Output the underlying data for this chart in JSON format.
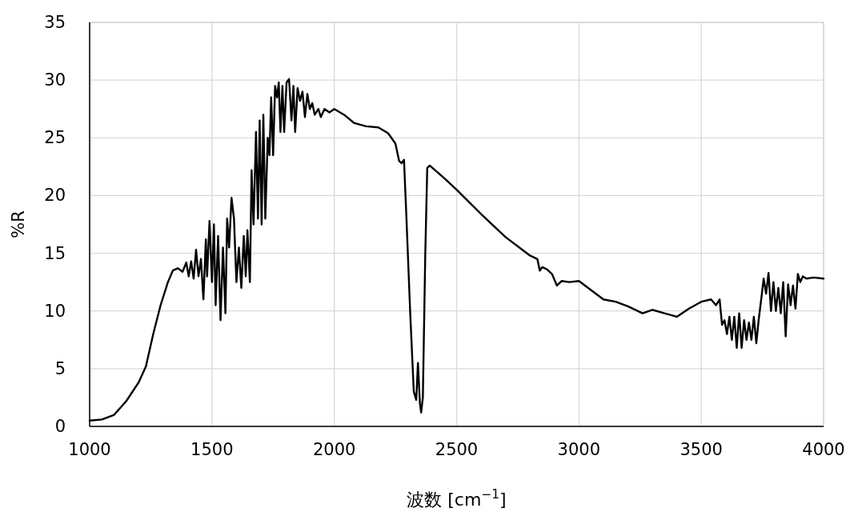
{
  "chart_data": {
    "type": "line",
    "xlabel": "波数 [cm$^{−1}$]",
    "ylabel": "%R",
    "xlim": [
      1000,
      4000
    ],
    "ylim": [
      0,
      35
    ],
    "xticks": [
      1000,
      1500,
      2000,
      2500,
      3000,
      3500,
      4000
    ],
    "yticks": [
      0,
      5,
      10,
      15,
      20,
      25,
      30,
      35
    ],
    "grid": true,
    "x": [
      1000,
      1050,
      1100,
      1150,
      1200,
      1230,
      1260,
      1290,
      1320,
      1340,
      1360,
      1380,
      1395,
      1405,
      1415,
      1425,
      1435,
      1445,
      1455,
      1465,
      1475,
      1480,
      1490,
      1500,
      1508,
      1515,
      1525,
      1535,
      1545,
      1555,
      1562,
      1570,
      1580,
      1590,
      1600,
      1610,
      1620,
      1630,
      1638,
      1645,
      1655,
      1662,
      1670,
      1680,
      1688,
      1695,
      1703,
      1710,
      1718,
      1728,
      1735,
      1742,
      1750,
      1758,
      1766,
      1773,
      1780,
      1788,
      1795,
      1805,
      1815,
      1825,
      1833,
      1840,
      1850,
      1860,
      1870,
      1880,
      1890,
      1900,
      1910,
      1920,
      1935,
      1945,
      1960,
      1980,
      2000,
      2040,
      2080,
      2130,
      2180,
      2220,
      2250,
      2265,
      2275,
      2285,
      2295,
      2310,
      2325,
      2335,
      2342,
      2350,
      2355,
      2362,
      2372,
      2380,
      2390,
      2450,
      2500,
      2600,
      2700,
      2800,
      2830,
      2840,
      2850,
      2870,
      2890,
      2910,
      2930,
      2960,
      3000,
      3050,
      3100,
      3150,
      3200,
      3260,
      3300,
      3350,
      3400,
      3450,
      3500,
      3540,
      3560,
      3575,
      3585,
      3595,
      3605,
      3615,
      3625,
      3635,
      3645,
      3655,
      3665,
      3675,
      3685,
      3695,
      3705,
      3715,
      3725,
      3735,
      3745,
      3755,
      3765,
      3775,
      3785,
      3795,
      3805,
      3815,
      3825,
      3835,
      3845,
      3855,
      3865,
      3875,
      3885,
      3895,
      3905,
      3915,
      3930,
      3960,
      4000
    ],
    "series": [
      {
        "color": "#000000",
        "values": [
          0.5,
          0.6,
          1.0,
          2.2,
          3.8,
          5.2,
          8,
          10.5,
          12.5,
          13.5,
          13.7,
          13.4,
          14.2,
          13.0,
          14.3,
          12.8,
          15.3,
          13.0,
          14.5,
          11.0,
          16.2,
          13.0,
          17.8,
          12.5,
          17.5,
          10.5,
          16.5,
          9.2,
          15.5,
          9.8,
          18.0,
          15.5,
          19.8,
          18.0,
          12.5,
          15.5,
          12.0,
          16.5,
          13.0,
          17.0,
          12.5,
          22.2,
          17.5,
          25.5,
          18.0,
          26.5,
          17.5,
          27.0,
          18.0,
          25.0,
          23.5,
          28.5,
          23.5,
          29.5,
          28.5,
          29.8,
          25.5,
          29.5,
          25.5,
          29.8,
          30.1,
          26.5,
          29.5,
          25.5,
          29.3,
          28.2,
          29.0,
          26.8,
          28.8,
          27.5,
          28.0,
          27.0,
          27.5,
          26.8,
          27.5,
          27.2,
          27.5,
          27.0,
          26.3,
          26.0,
          25.9,
          25.4,
          24.5,
          23.0,
          22.8,
          23.1,
          18,
          10,
          3,
          2.3,
          5.5,
          2.0,
          1.2,
          2.5,
          15,
          22.4,
          22.6,
          21.5,
          20.5,
          18.4,
          16.4,
          14.8,
          14.5,
          13.5,
          13.8,
          13.6,
          13.2,
          12.2,
          12.6,
          12.5,
          12.6,
          11.8,
          11.0,
          10.8,
          10.4,
          9.8,
          10.1,
          9.8,
          9.5,
          10.2,
          10.8,
          11.0,
          10.5,
          11.0,
          8.8,
          9.2,
          8.0,
          9.5,
          7.5,
          9.5,
          6.8,
          9.8,
          6.8,
          9.2,
          7.5,
          9.0,
          7.5,
          9.5,
          7.2,
          9.3,
          11.0,
          12.8,
          11.5,
          13.3,
          10.0,
          12.5,
          10.0,
          12.0,
          9.8,
          12.5,
          7.8,
          12.3,
          10.5,
          12.2,
          10.2,
          13.2,
          12.5,
          13.0,
          12.8,
          12.9,
          12.8
        ]
      }
    ]
  }
}
